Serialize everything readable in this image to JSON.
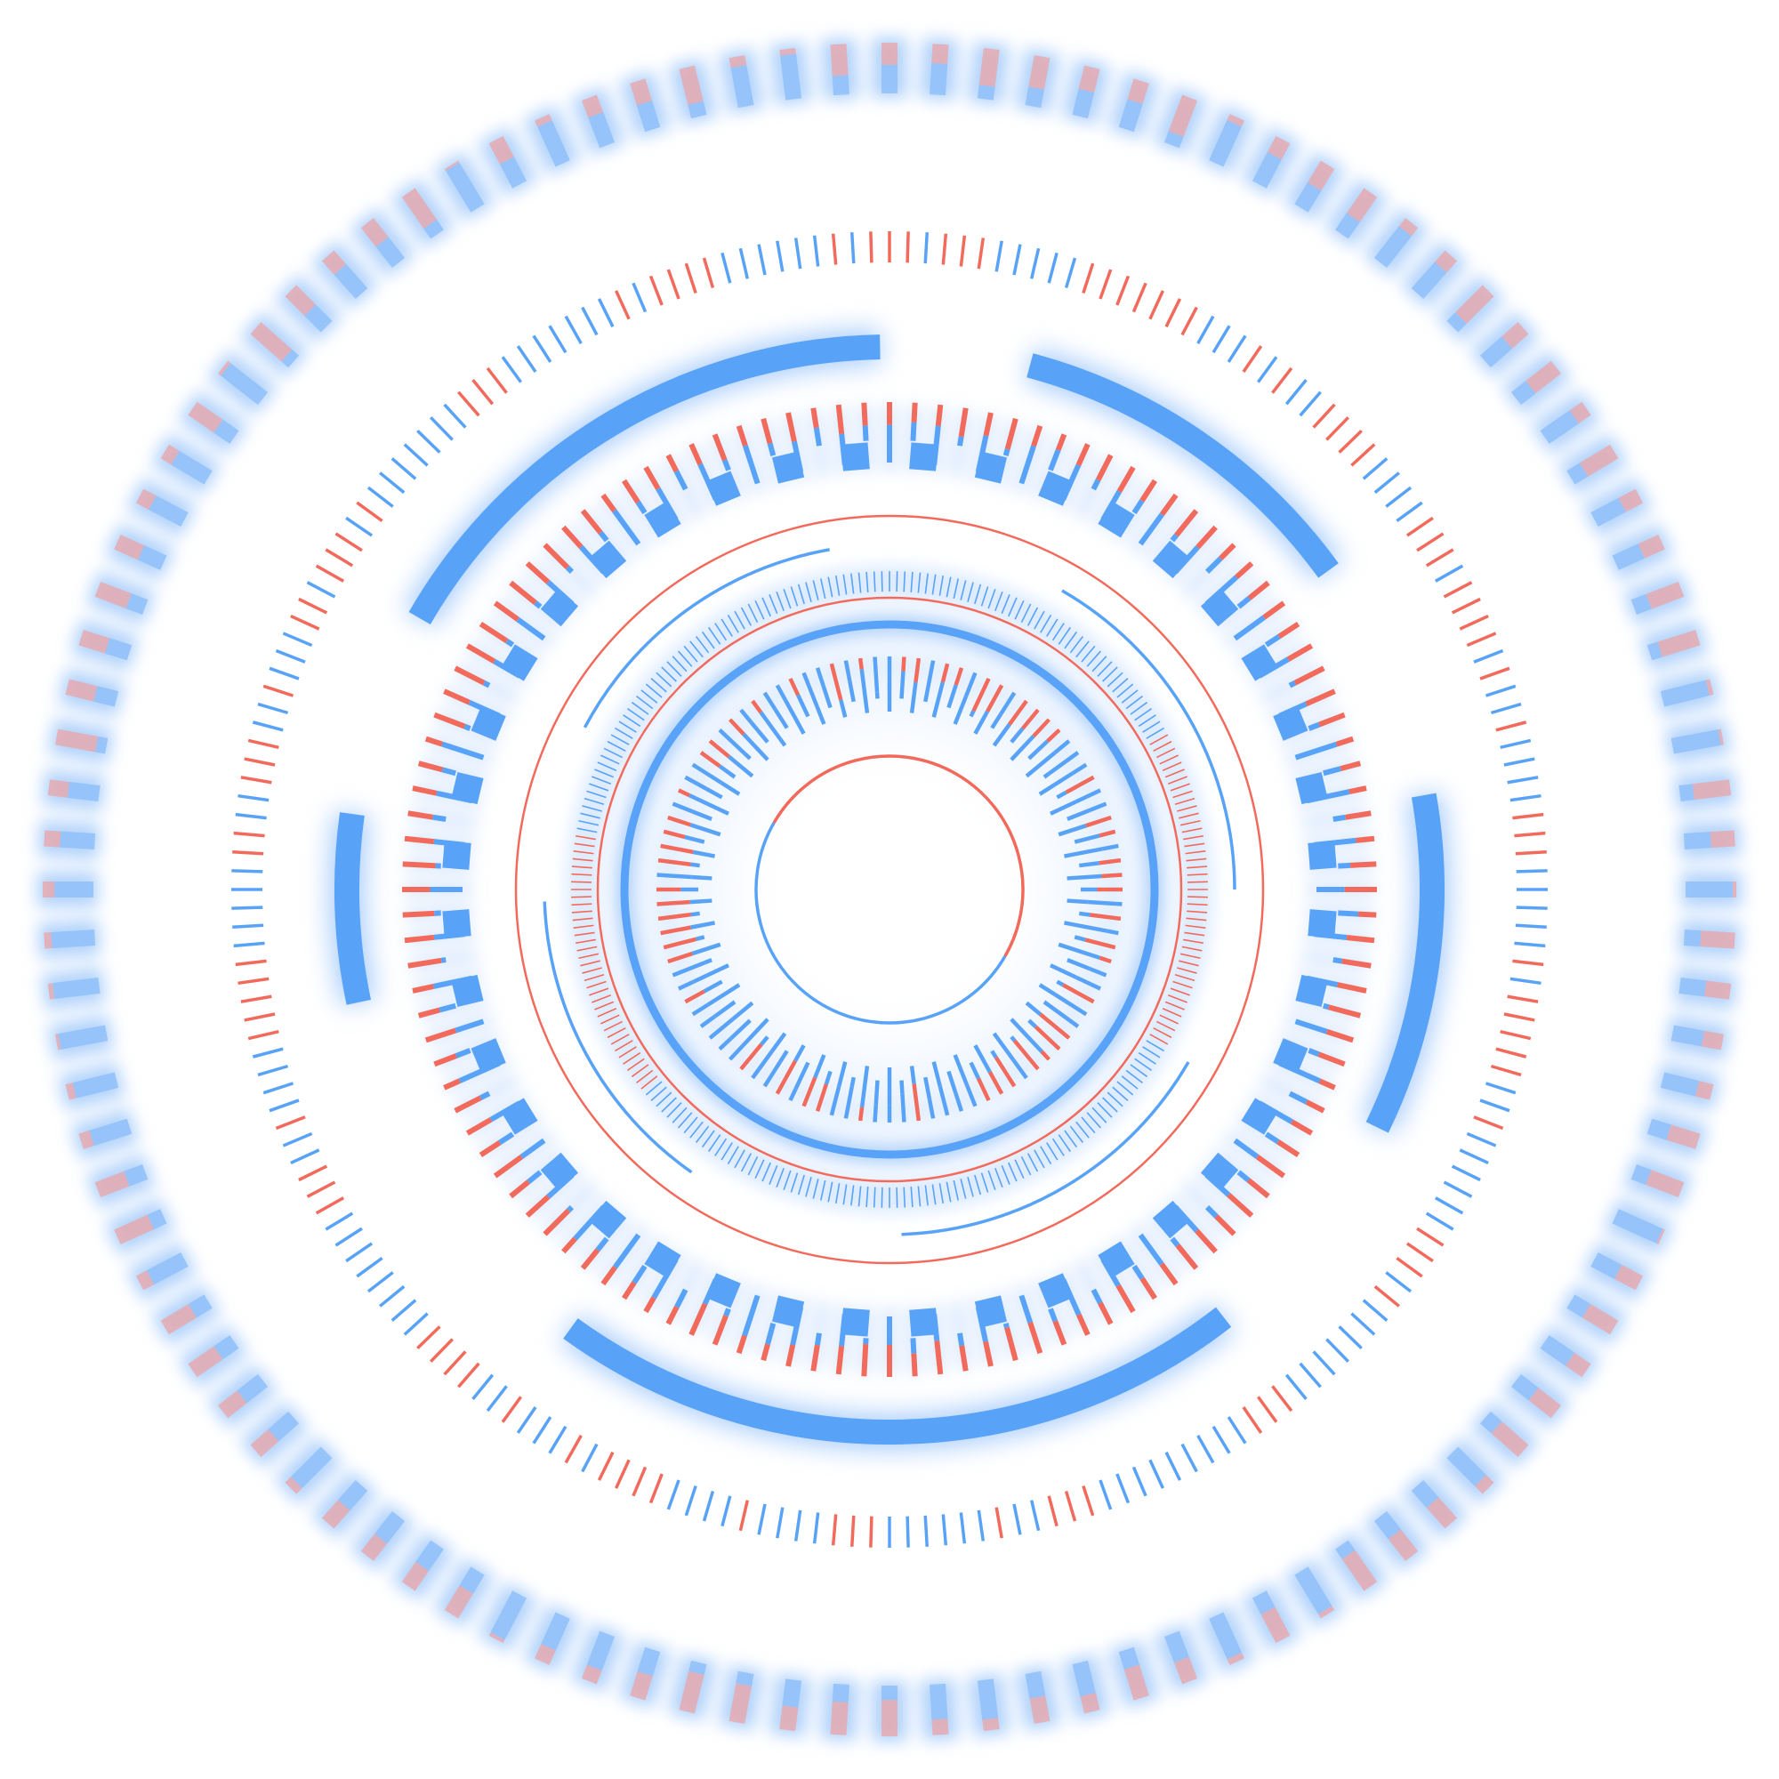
{
  "colors": {
    "background": "#ffffff",
    "blue": "#58a3f8",
    "red": "#f26a5b",
    "glow": "#a9cdfb",
    "soft_blue": "#8fc0f9",
    "soft_red": "#e7a8ad"
  },
  "rings": [
    {
      "name": "outer-glow-tick-ring",
      "style": "glow-ticks"
    },
    {
      "name": "dense-dual-color-tick-ring",
      "style": "fine-ticks"
    },
    {
      "name": "thick-arc-segments",
      "style": "arcs"
    },
    {
      "name": "medium-tick-ring-with-square-markers",
      "style": "ticks-and-squares"
    },
    {
      "name": "thin-red-circle",
      "style": "line"
    },
    {
      "name": "thin-blue-arc-segments",
      "style": "arcs"
    },
    {
      "name": "micro-tick-ring",
      "style": "fine-ticks"
    },
    {
      "name": "inner-thin-red-circle",
      "style": "line"
    },
    {
      "name": "thick-blue-circle",
      "style": "line"
    },
    {
      "name": "inner-tick-ring",
      "style": "ticks"
    },
    {
      "name": "core-circle",
      "style": "line"
    }
  ]
}
